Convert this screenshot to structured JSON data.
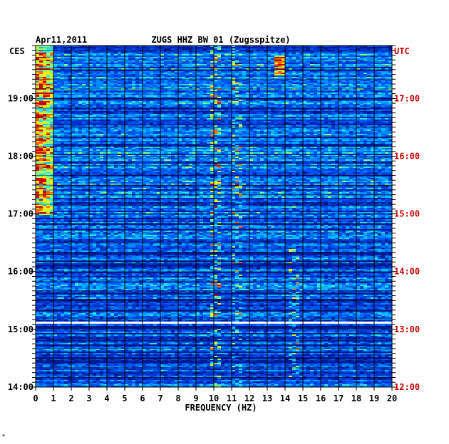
{
  "header": {
    "date": "Apr11,2011",
    "station": "ZUGS HHZ BW 01 (Zugsspitze)"
  },
  "chart_data": {
    "type": "heatmap",
    "title": "ZUGS HHZ BW 01 (Zugsspitze)",
    "date": "Apr11,2011",
    "xlabel": "FREQUENCY (HZ)",
    "x_ticks": [
      0,
      1,
      2,
      3,
      4,
      5,
      6,
      7,
      8,
      9,
      10,
      11,
      12,
      13,
      14,
      15,
      16,
      17,
      18,
      19,
      20
    ],
    "xlim": [
      0,
      20
    ],
    "left_axis": {
      "label": "CES",
      "ticks": [
        "19:00",
        "18:00",
        "17:00",
        "16:00",
        "15:00",
        "14:00"
      ],
      "range": [
        "19:55",
        "14:00"
      ]
    },
    "right_axis": {
      "label": "UTC",
      "ticks": [
        "17:00",
        "16:00",
        "15:00",
        "14:00",
        "13:00",
        "12:00"
      ],
      "range": [
        "17:55",
        "12:00"
      ]
    },
    "grid": true,
    "colors": {
      "background": "#00198c",
      "grid": "#000000",
      "utc_axis": "#cc0000",
      "gap": "#ffffff"
    },
    "features": [
      {
        "name": "low-frequency band",
        "freq_hz": [
          0,
          1
        ],
        "local_time": [
          "19:55",
          "17:00"
        ]
      },
      {
        "name": "line near 10 Hz",
        "freq_hz": 10.0
      },
      {
        "name": "line near 11.2 Hz",
        "freq_hz": 11.2
      },
      {
        "name": "line near 13.6 Hz",
        "freq_hz": 13.6,
        "local_time": [
          "19:45",
          "19:25"
        ]
      },
      {
        "name": "line near 14.3 Hz",
        "freq_hz": 14.3,
        "local_time": [
          "16:30",
          "14:10"
        ]
      },
      {
        "name": "data gap",
        "local_time": "15:07"
      }
    ]
  },
  "footer": {
    "mark": "*"
  }
}
